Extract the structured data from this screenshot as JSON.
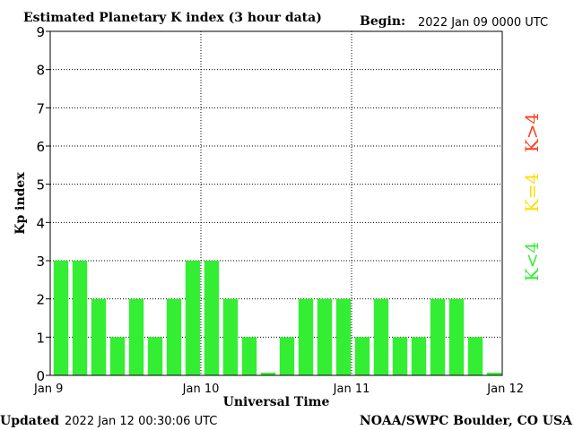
{
  "header": {
    "title": "Estimated Planetary K index (3 hour data)",
    "begin_label": "Begin:",
    "begin_value": "2022 Jan 09 0000 UTC"
  },
  "footer": {
    "updated_label": "Updated",
    "updated_value": "2022 Jan 12 00:30:06 UTC",
    "source": "NOAA/SWPC Boulder, CO USA"
  },
  "legend": {
    "entries": [
      {
        "label": "K<4",
        "color": "#33ee33"
      },
      {
        "label": "K=4",
        "color": "#ffdd00"
      },
      {
        "label": "K>4",
        "color": "#ff3b1f"
      }
    ]
  },
  "chart_data": {
    "type": "bar",
    "title": "Estimated Planetary K index (3 hour data)",
    "xlabel": "Universal Time",
    "ylabel": "Kp index",
    "ylim": [
      0,
      9
    ],
    "yticks": [
      0,
      1,
      2,
      3,
      4,
      5,
      6,
      7,
      8,
      9
    ],
    "xticks": [
      "Jan 9",
      "Jan 10",
      "Jan 11",
      "Jan 12"
    ],
    "bars_per_day": 8,
    "grid": true,
    "bar_color": "#33ee33",
    "values": [
      3,
      3,
      2,
      1,
      2,
      1,
      2,
      3,
      3,
      2,
      1,
      0.07,
      1,
      2,
      2,
      2,
      1,
      2,
      1,
      1,
      2,
      2,
      1,
      0.07
    ]
  }
}
